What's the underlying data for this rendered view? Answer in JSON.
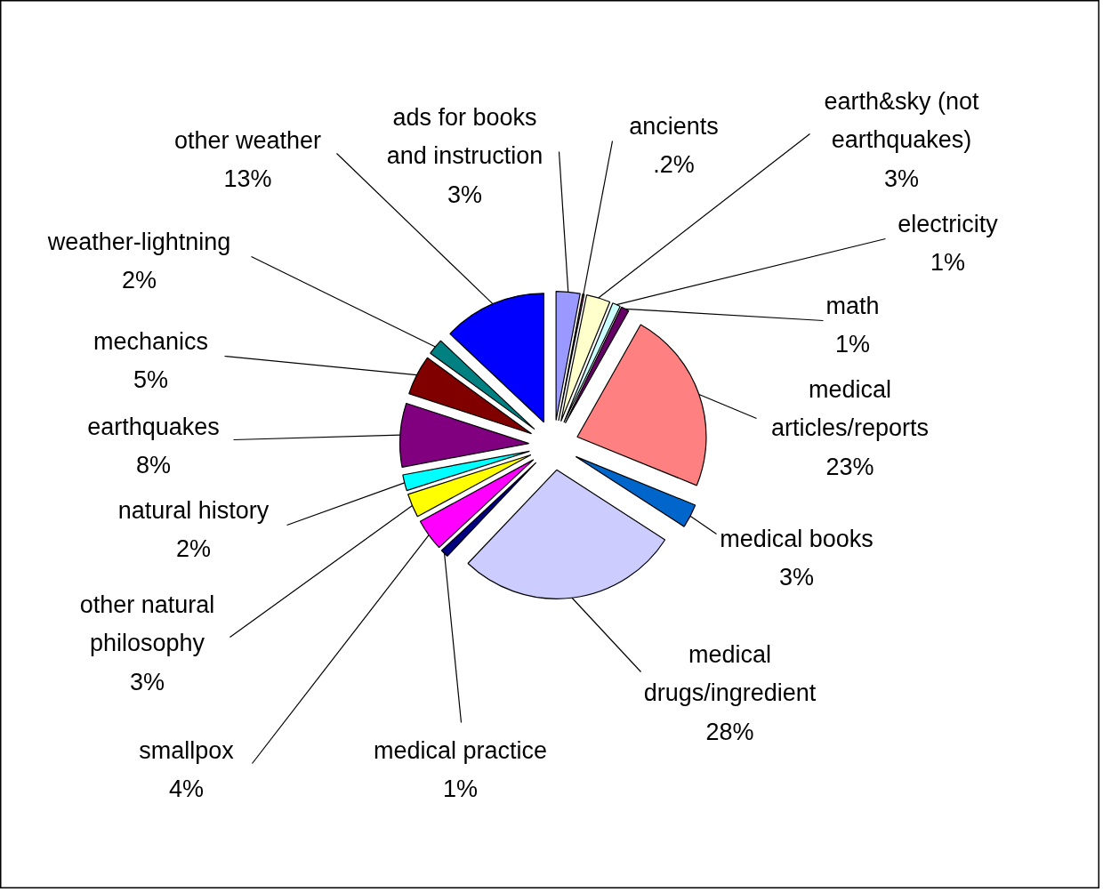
{
  "chart_data": {
    "type": "pie",
    "categories": [
      "ads for books\nand instruction",
      "ancients",
      "earth&sky (not\nearthquakes)",
      "electricity",
      "math",
      "medical\narticles/reports",
      "medical books",
      "medical\ndrugs/ingredient",
      "medical practice",
      "smallpox",
      "other natural\nphilosophy",
      "natural history",
      "earthquakes",
      "mechanics",
      "weather-lightning",
      "other weather"
    ],
    "values": [
      3,
      0.2,
      3,
      1,
      1,
      23,
      3,
      28,
      1,
      4,
      3,
      2,
      8,
      5,
      2,
      13
    ],
    "value_labels": [
      "3%",
      ".2%",
      "3%",
      "1%",
      "1%",
      "23%",
      "3%",
      "28%",
      "1%",
      "4%",
      "3%",
      "2%",
      "8%",
      "5%",
      "2%",
      "13%"
    ],
    "colors": [
      "#9999ff",
      "#993366",
      "#ffffcc",
      "#ccffff",
      "#660066",
      "#ff8080",
      "#0066cc",
      "#ccccff",
      "#000080",
      "#ff00ff",
      "#ffff00",
      "#00ffff",
      "#800080",
      "#800000",
      "#008080",
      "#0000ff"
    ]
  }
}
